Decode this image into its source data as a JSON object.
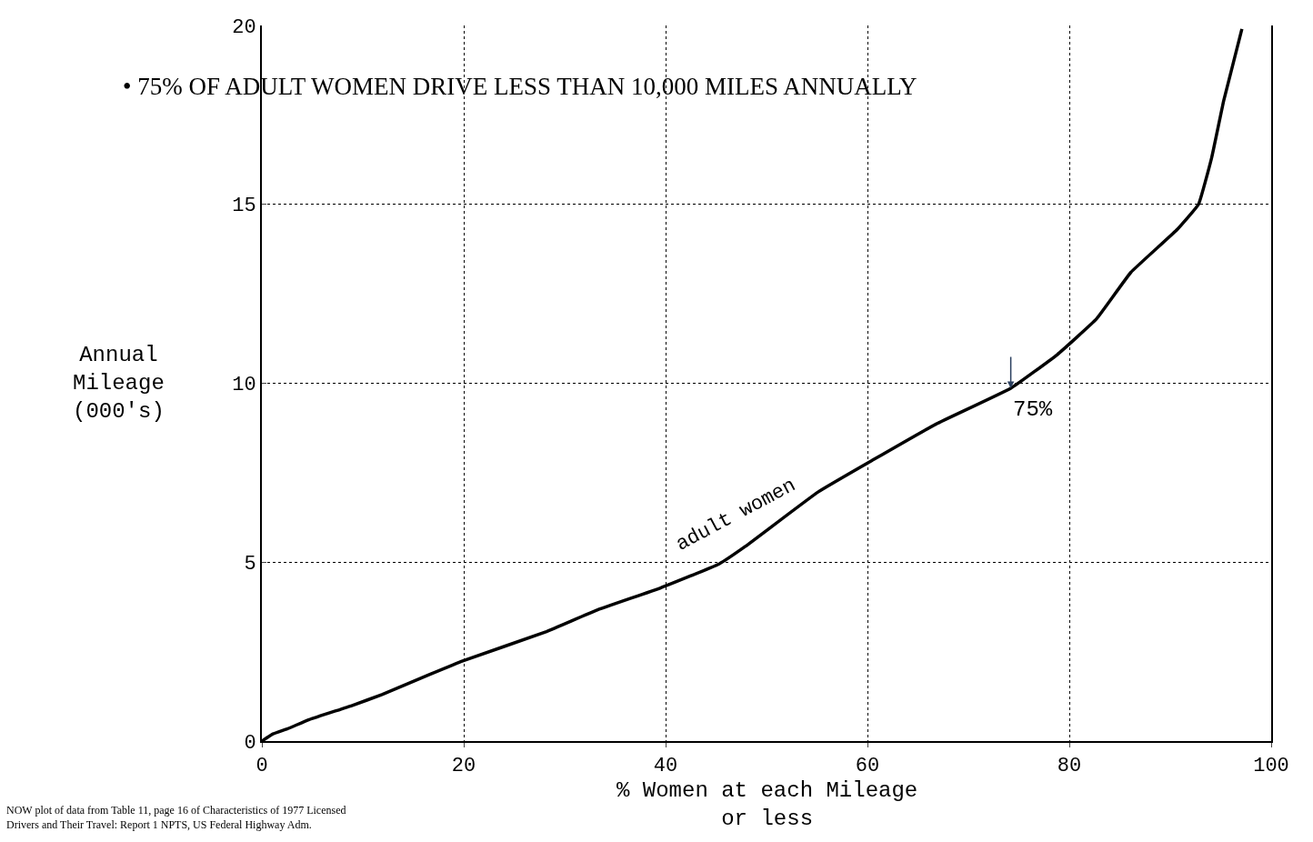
{
  "chart_data": {
    "type": "line",
    "title": "• 75% OF ADULT WOMEN DRIVE LESS THAN 10,000 MILES ANNUALLY",
    "xlabel": "% Women at each Mileage\nor less",
    "ylabel": "Annual\nMileage\n(000's)",
    "x": [
      0,
      1.1,
      2.5,
      4.7,
      8.9,
      11.9,
      16.7,
      19.9,
      28.2,
      33.1,
      39.5,
      45.3,
      47.9,
      55.1,
      60.5,
      66.8,
      74.2,
      78.8,
      82.7,
      86.1,
      90.7,
      92.8,
      94.1,
      95.3,
      97.1
    ],
    "series": [
      {
        "name": "adult women",
        "color": "#000000",
        "values": [
          0,
          0.2,
          0.34,
          0.6,
          0.99,
          1.3,
          1.87,
          2.24,
          3.06,
          3.65,
          4.28,
          4.95,
          5.44,
          6.96,
          7.85,
          8.86,
          9.86,
          10.8,
          11.8,
          13.1,
          14.3,
          15.0,
          16.3,
          17.9,
          19.9
        ]
      }
    ],
    "xlim": [
      0,
      100
    ],
    "ylim": [
      0,
      20
    ],
    "xticks": [
      0,
      20,
      40,
      60,
      80,
      100
    ],
    "yticks": [
      0,
      5,
      10,
      15,
      20
    ],
    "grid": true,
    "line_style": "solid",
    "marker": "none",
    "legend": false,
    "annotations": [
      {
        "text": "75%",
        "x": 74.2,
        "y": 9.86
      },
      "NOW plot of data from Table 11, page 16 of Characteristics of 1977 Licensed\nDrivers and Their Travel: Report 1 NPTS, US Federal Highway Adm."
    ]
  }
}
